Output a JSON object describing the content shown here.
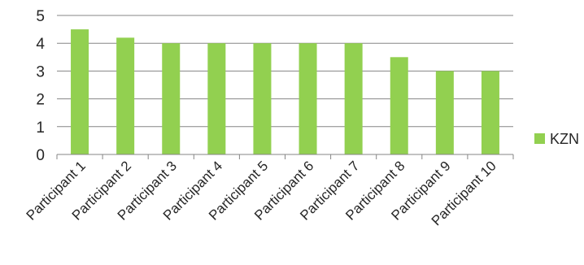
{
  "chart_data": {
    "type": "bar",
    "categories": [
      "Participant 1",
      "Participant 2",
      "Participant 3",
      "Participant 4",
      "Participant 5",
      "Participant 6",
      "Participant 7",
      "Participant 8",
      "Participant 9",
      "Participant 10"
    ],
    "series": [
      {
        "name": "KZN",
        "values": [
          4.5,
          4.2,
          4,
          4,
          4,
          4,
          4,
          3.5,
          3,
          3
        ],
        "color": "#92d050"
      }
    ],
    "title": "",
    "xlabel": "",
    "ylabel": "",
    "ylim": [
      0,
      5
    ],
    "yticks": [
      "0",
      "1",
      "2",
      "3",
      "4",
      "5"
    ],
    "grid": true,
    "legend_position": "right"
  }
}
